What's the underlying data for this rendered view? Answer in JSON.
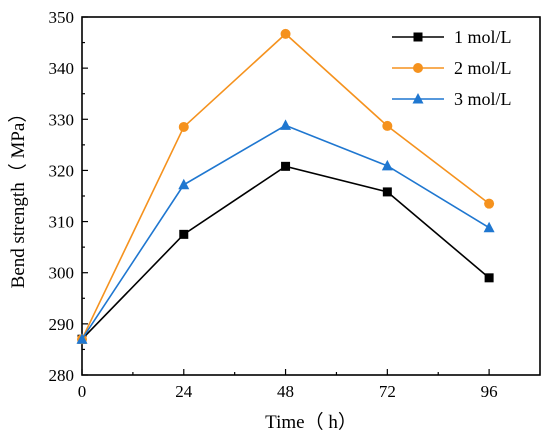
{
  "chart_data": {
    "type": "line",
    "xlabel": "Time（ h）",
    "ylabel": "Bend strength（ MPa）",
    "x": [
      0,
      24,
      48,
      72,
      96
    ],
    "xlim": [
      0,
      108
    ],
    "ylim": [
      280,
      350
    ],
    "xticks": [
      0,
      24,
      48,
      72,
      96
    ],
    "yticks": [
      280,
      290,
      300,
      310,
      320,
      330,
      340,
      350
    ],
    "grid": false,
    "legend_position": "top-right",
    "series": [
      {
        "name": "1 mol/L",
        "values": [
          287,
          307.5,
          320.8,
          315.8,
          299
        ],
        "color": "#000000",
        "marker": "square"
      },
      {
        "name": "2 mol/L",
        "values": [
          287,
          328.5,
          346.7,
          328.7,
          313.5
        ],
        "color": "#f5921e",
        "marker": "circle"
      },
      {
        "name": "3 mol/L",
        "values": [
          287,
          317.2,
          328.8,
          320.9,
          308.8
        ],
        "color": "#1f77d0",
        "marker": "triangle"
      }
    ]
  }
}
